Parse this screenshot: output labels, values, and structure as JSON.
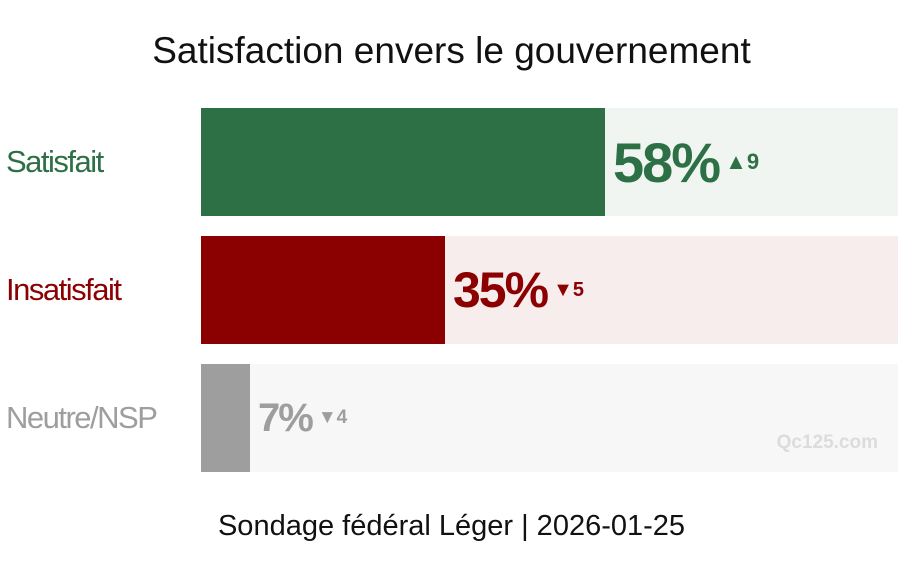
{
  "title": "Satisfaction envers le gouvernement",
  "footer": "Sondage fédéral Léger | 2026-01-25",
  "watermark": "Qc125.com",
  "chart_data": {
    "type": "bar",
    "orientation": "horizontal",
    "categories": [
      "Satisfait",
      "Insatisfait",
      "Neutre/NSP"
    ],
    "values": [
      58,
      35,
      7
    ],
    "value_labels": [
      "58%",
      "35%",
      "7%"
    ],
    "changes": [
      {
        "direction": "up",
        "symbol": "▲",
        "amount": "9"
      },
      {
        "direction": "down",
        "symbol": "▼",
        "amount": "5"
      },
      {
        "direction": "down",
        "symbol": "▼",
        "amount": "4"
      }
    ],
    "colors": [
      "#2e7045",
      "#8b0000",
      "#9e9e9e"
    ],
    "track_colors": [
      "#f0f5f1",
      "#f7eded",
      "#f7f7f7"
    ],
    "xlim": [
      0,
      100
    ]
  }
}
